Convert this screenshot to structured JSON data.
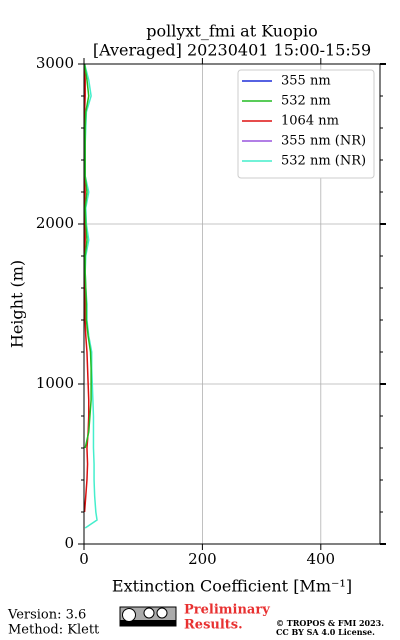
{
  "chart_data": {
    "type": "line",
    "title": [
      "pollyxt_fmi at Kuopio",
      "[Averaged] 20230401 15:00-15:59"
    ],
    "xlabel": "Extinction Coefficient [Mm⁻¹]",
    "ylabel": "Height (m)",
    "xlim": [
      0,
      500
    ],
    "xticks": [
      0,
      200,
      400
    ],
    "ylim": [
      0,
      3000
    ],
    "yticks": [
      0,
      1000,
      2000,
      3000
    ],
    "yminorticks": [
      200,
      400,
      600,
      800,
      1200,
      1400,
      1600,
      1800,
      2200,
      2400,
      2600,
      2800
    ],
    "grid": true,
    "legend": "upper right",
    "y": [
      100,
      150,
      200,
      300,
      400,
      500,
      600,
      700,
      800,
      900,
      1000,
      1100,
      1200,
      1300,
      1400,
      1500,
      1600,
      1700,
      1800,
      1900,
      2000,
      2100,
      2200,
      2300,
      2400,
      2500,
      2600,
      2700,
      2800,
      2900,
      3000
    ],
    "series": [
      {
        "name": "355 nm",
        "color": "#1f2fd8",
        "values": [
          null,
          null,
          null,
          null,
          null,
          null,
          null,
          null,
          null,
          null,
          null,
          null,
          null,
          null,
          null,
          null,
          null,
          null,
          null,
          null,
          null,
          null,
          null,
          null,
          null,
          null,
          null,
          null,
          null,
          null,
          null
        ]
      },
      {
        "name": "532 nm",
        "color": "#22bb22",
        "values": [
          null,
          null,
          null,
          null,
          null,
          null,
          2,
          8,
          10,
          12,
          12,
          12,
          11,
          7,
          4,
          4,
          3,
          2,
          2,
          5,
          3,
          2,
          5,
          2,
          2,
          2,
          2,
          3,
          8,
          5,
          1
        ]
      },
      {
        "name": "1064 nm",
        "color": "#dd1111",
        "values": [
          null,
          null,
          1,
          3,
          5,
          6,
          5,
          7,
          8,
          8,
          7,
          6,
          5,
          3,
          2,
          2,
          2,
          1,
          1,
          2,
          2,
          1,
          2,
          1,
          1,
          1,
          1,
          1,
          2,
          2,
          1
        ]
      },
      {
        "name": "355 nm (NR)",
        "color": "#9955dd",
        "values": [
          null,
          null,
          null,
          null,
          null,
          null,
          null,
          null,
          null,
          null,
          null,
          null,
          null,
          null,
          null,
          null,
          null,
          null,
          null,
          null,
          null,
          null,
          null,
          null,
          null,
          null,
          null,
          null,
          null,
          null,
          null
        ]
      },
      {
        "name": "532 nm (NR)",
        "color": "#44eecc",
        "values": [
          2,
          22,
          20,
          18,
          17,
          17,
          16,
          16,
          16,
          15,
          14,
          13,
          13,
          8,
          5,
          5,
          3,
          2,
          3,
          8,
          4,
          3,
          8,
          2,
          2,
          2,
          3,
          4,
          12,
          8,
          1
        ]
      }
    ]
  },
  "footer": {
    "version": "Version: 3.6",
    "method": "Method: Klett",
    "notice": [
      "Preliminary",
      "Results."
    ],
    "copyright": [
      "© TROPOS & FMI 2023.",
      "CC BY SA 4.0 License."
    ]
  }
}
